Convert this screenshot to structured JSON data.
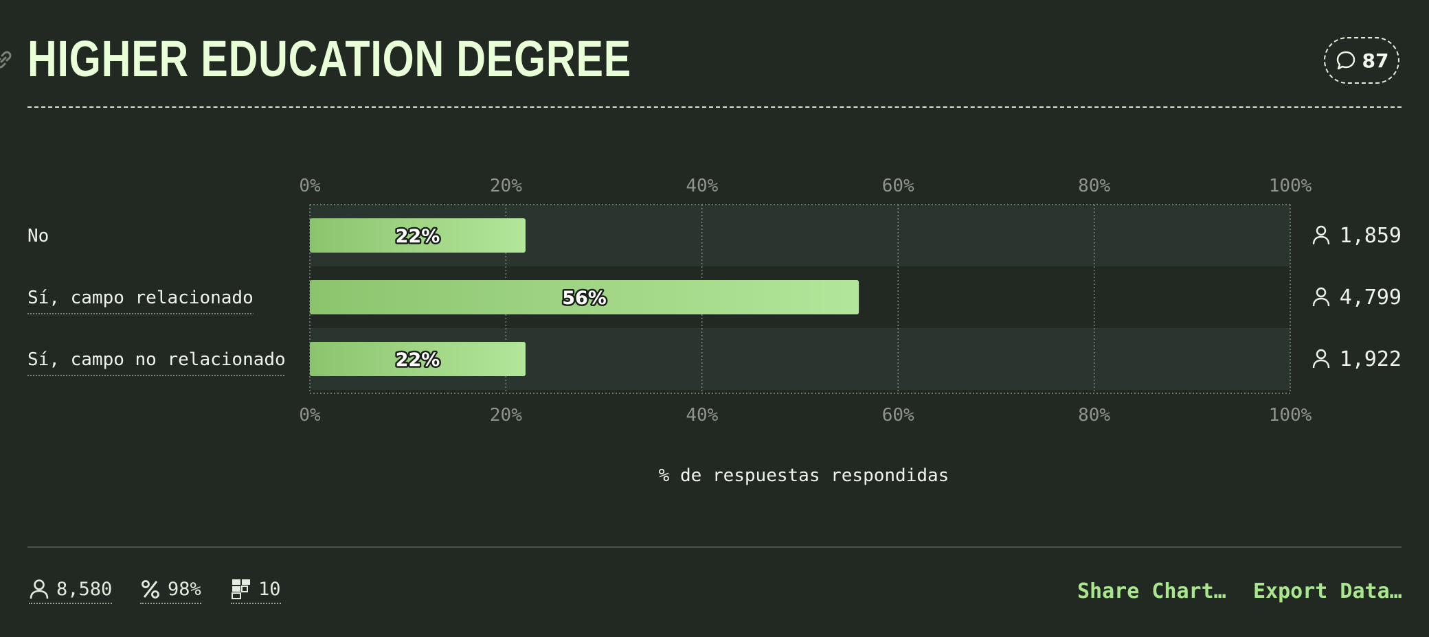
{
  "header": {
    "title": "HIGHER EDUCATION DEGREE",
    "comment_count": "87"
  },
  "chart_data": {
    "type": "bar",
    "orientation": "horizontal",
    "categories": [
      "No",
      "Sí, campo relacionado",
      "Sí, campo no relacionado"
    ],
    "values": [
      22,
      56,
      22
    ],
    "value_labels": [
      "22%",
      "56%",
      "22%"
    ],
    "counts": [
      "1,859",
      "4,799",
      "1,922"
    ],
    "xlabel": "% de respuestas respondidas",
    "xlim": [
      0,
      100
    ],
    "xticks": [
      "0%",
      "20%",
      "40%",
      "60%",
      "80%",
      "100%"
    ],
    "grid": true,
    "colors": {
      "bar_start": "#8cc46e",
      "bar_end": "#b2e69a",
      "row_band": "#2b3530",
      "grid": "#9aa394",
      "tick_text": "#8f958c"
    }
  },
  "footer": {
    "respondents": "8,580",
    "completion": "98%",
    "rank": "10",
    "share_label": "Share Chart…",
    "export_label": "Export Data…"
  },
  "icons": [
    "link-icon",
    "comment-icon",
    "user-icon",
    "percent-icon",
    "ranking-icon"
  ]
}
